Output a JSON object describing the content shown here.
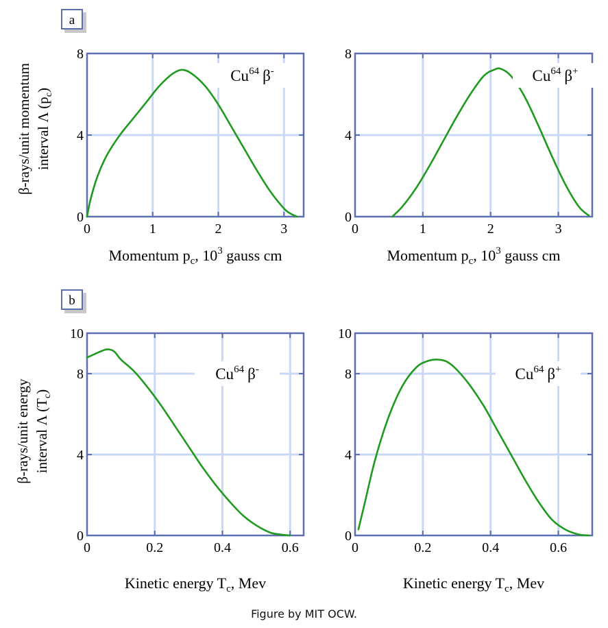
{
  "caption": "Figure by MIT OCW.",
  "colors": {
    "frame": "#5c6fae",
    "grid": "#c8d8f6",
    "curve": "#1f9a1f",
    "box_bg": "#ffffff",
    "box_shadow": "#c8c8c8"
  },
  "panels": [
    {
      "id": "a",
      "label": "a"
    },
    {
      "id": "b",
      "label": "b"
    }
  ],
  "ylabels": {
    "a": {
      "line1": "β-rays/unit momentum",
      "line2_main": "interval Λ (p",
      "line2_sub": "c",
      "line2_end": ")"
    },
    "b": {
      "line1": "β-rays/unit energy",
      "line2_main": "interval Λ (T",
      "line2_sub": "c",
      "line2_end": ")"
    }
  },
  "chart_data": [
    {
      "type": "line",
      "panel": "a",
      "series_label": {
        "base": "Cu",
        "mass": "64",
        "particle": "β",
        "charge": "-"
      },
      "xlabel": {
        "main": "Momentum p",
        "sub": "c",
        "mid": ", 10",
        "sup": "3",
        "end": " gauss cm"
      },
      "xlim": [
        0,
        3.3
      ],
      "ylim": [
        0,
        8
      ],
      "xticks": [
        0,
        1,
        2,
        3
      ],
      "yticks": [
        0,
        4,
        8
      ],
      "xticklabels": [
        "0",
        "1",
        "2",
        "3"
      ],
      "yticklabels": [
        "0",
        "4",
        "8"
      ],
      "grid": true,
      "x": [
        0.0,
        0.05,
        0.15,
        0.3,
        0.5,
        0.7,
        0.9,
        1.1,
        1.3,
        1.45,
        1.6,
        1.8,
        2.0,
        2.2,
        2.4,
        2.6,
        2.8,
        3.0,
        3.1,
        3.2
      ],
      "y": [
        0.0,
        0.8,
        1.9,
        3.0,
        4.0,
        4.8,
        5.6,
        6.4,
        7.0,
        7.2,
        7.0,
        6.4,
        5.5,
        4.4,
        3.3,
        2.2,
        1.2,
        0.4,
        0.15,
        0.0
      ]
    },
    {
      "type": "line",
      "panel": "a",
      "series_label": {
        "base": "Cu",
        "mass": "64",
        "particle": "β",
        "charge": "+"
      },
      "xlabel": {
        "main": "Momentum p",
        "sub": "c",
        "mid": ", 10",
        "sup": "3",
        "end": " gauss cm"
      },
      "xlim": [
        0,
        3.5
      ],
      "ylim": [
        0,
        8
      ],
      "xticks": [
        0,
        1,
        2,
        3
      ],
      "yticks": [
        0,
        4,
        8
      ],
      "xticklabels": [
        "0",
        "1",
        "2",
        "3"
      ],
      "yticklabels": [
        "0",
        "4",
        "8"
      ],
      "grid": true,
      "x": [
        0.55,
        0.7,
        0.9,
        1.1,
        1.3,
        1.5,
        1.7,
        1.9,
        2.05,
        2.15,
        2.3,
        2.5,
        2.7,
        2.9,
        3.1,
        3.3,
        3.45
      ],
      "y": [
        0.0,
        0.5,
        1.4,
        2.5,
        3.7,
        4.9,
        6.0,
        6.9,
        7.2,
        7.25,
        6.9,
        5.9,
        4.5,
        3.0,
        1.6,
        0.5,
        0.05
      ]
    },
    {
      "type": "line",
      "panel": "b",
      "series_label": {
        "base": "Cu",
        "mass": "64",
        "particle": "β",
        "charge": "-"
      },
      "xlabel": {
        "main": "Kinetic energy T",
        "sub": "c",
        "end": ", Mev"
      },
      "xlim": [
        0,
        0.64
      ],
      "ylim": [
        0,
        10
      ],
      "xticks": [
        0,
        0.2,
        0.4,
        0.6
      ],
      "yticks": [
        0,
        4,
        8,
        10
      ],
      "xticklabels": [
        "0",
        "0.2",
        "0.4",
        "0.6"
      ],
      "yticklabels": [
        "0",
        "4",
        "8",
        "10"
      ],
      "grid": true,
      "x": [
        0.0,
        0.02,
        0.04,
        0.06,
        0.08,
        0.1,
        0.14,
        0.18,
        0.22,
        0.26,
        0.3,
        0.34,
        0.38,
        0.42,
        0.46,
        0.5,
        0.54,
        0.57,
        0.6
      ],
      "y": [
        8.8,
        8.95,
        9.1,
        9.2,
        9.1,
        8.7,
        8.1,
        7.3,
        6.4,
        5.4,
        4.4,
        3.4,
        2.5,
        1.7,
        1.0,
        0.5,
        0.15,
        0.05,
        0.0
      ]
    },
    {
      "type": "line",
      "panel": "b",
      "series_label": {
        "base": "Cu",
        "mass": "64",
        "particle": "β",
        "charge": "+"
      },
      "xlabel": {
        "main": "Kinetic energy T",
        "sub": "c",
        "end": ", Mev"
      },
      "xlim": [
        0,
        0.7
      ],
      "ylim": [
        0,
        10
      ],
      "xticks": [
        0,
        0.2,
        0.4,
        0.6
      ],
      "yticks": [
        0,
        4,
        8,
        10
      ],
      "xticklabels": [
        "0",
        "0.2",
        "0.4",
        "0.6"
      ],
      "yticklabels": [
        "0",
        "4",
        "8",
        "10"
      ],
      "grid": true,
      "x": [
        0.01,
        0.03,
        0.06,
        0.1,
        0.14,
        0.18,
        0.21,
        0.24,
        0.27,
        0.3,
        0.34,
        0.38,
        0.42,
        0.46,
        0.5,
        0.54,
        0.58,
        0.62,
        0.66,
        0.69
      ],
      "y": [
        0.3,
        1.7,
        3.8,
        5.9,
        7.4,
        8.3,
        8.6,
        8.7,
        8.6,
        8.2,
        7.4,
        6.4,
        5.2,
        4.0,
        2.8,
        1.7,
        0.8,
        0.3,
        0.05,
        0.0
      ]
    }
  ]
}
